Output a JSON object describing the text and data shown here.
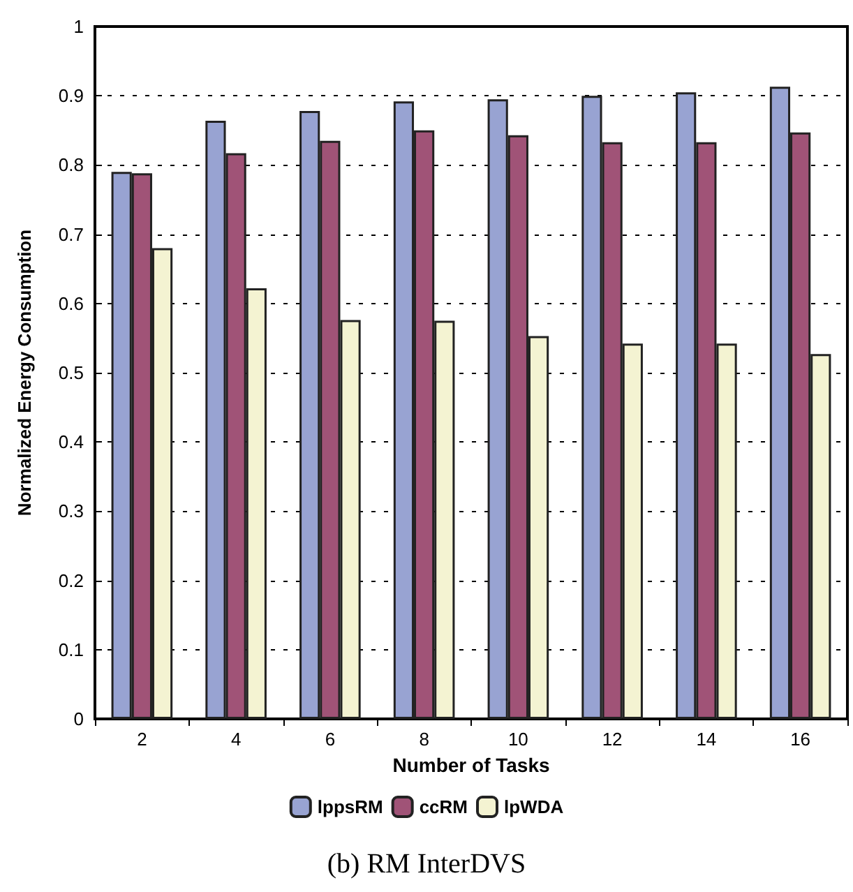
{
  "chart_data": {
    "type": "bar",
    "title": "(b) RM InterDVS",
    "xlabel": "Number of Tasks",
    "ylabel": "Normalized Energy Consumption",
    "categories": [
      "2",
      "4",
      "6",
      "8",
      "10",
      "12",
      "14",
      "16"
    ],
    "series": [
      {
        "name": "lppsRM",
        "color": "#98a3d2",
        "values": [
          0.79,
          0.864,
          0.878,
          0.892,
          0.895,
          0.9,
          0.905,
          0.913
        ]
      },
      {
        "name": "ccRM",
        "color": "#a05377",
        "values": [
          0.788,
          0.817,
          0.835,
          0.85,
          0.843,
          0.833,
          0.833,
          0.847
        ]
      },
      {
        "name": "lpWDA",
        "color": "#f4f3d2",
        "values": [
          0.68,
          0.622,
          0.576,
          0.575,
          0.553,
          0.542,
          0.542,
          0.527
        ]
      }
    ],
    "ylim": [
      0,
      1
    ],
    "yticks": [
      0,
      0.1,
      0.2,
      0.3,
      0.4,
      0.5,
      0.6,
      0.7,
      0.8,
      0.9,
      1
    ],
    "grid": "y",
    "legend": "bottom"
  }
}
